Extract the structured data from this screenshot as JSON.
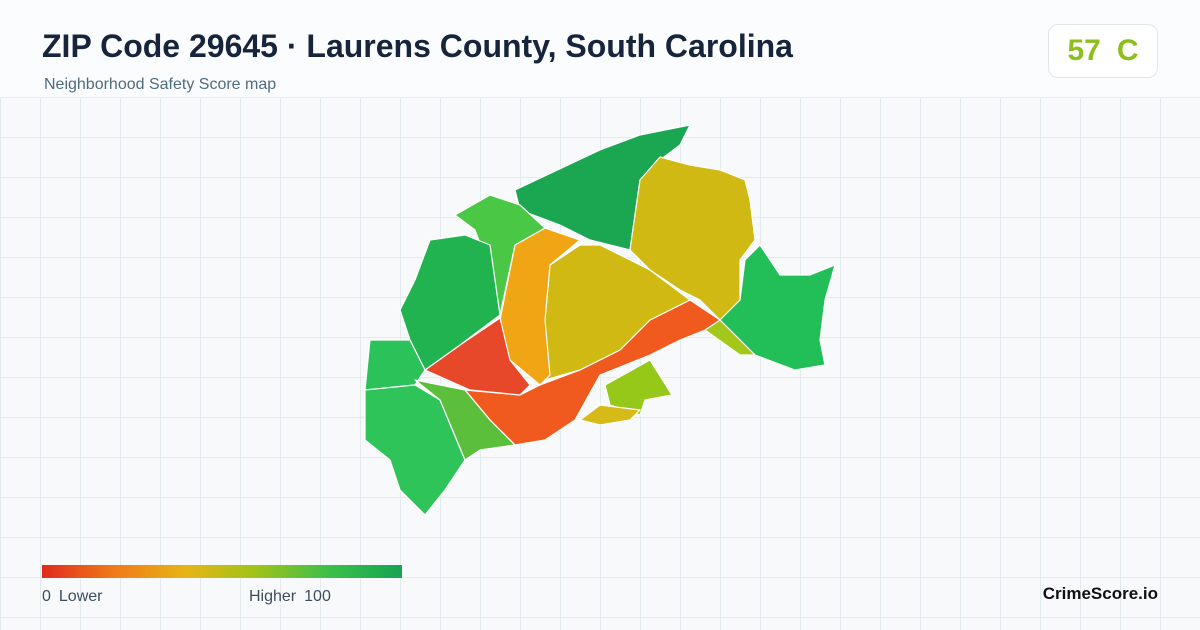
{
  "header": {
    "title": "ZIP Code 29645 · Laurens County, South Carolina",
    "subtitle": "Neighborhood Safety Score map"
  },
  "score": {
    "value": 57,
    "grade": "C"
  },
  "legend": {
    "min": 0,
    "min_label": "Lower",
    "max_label": "Higher",
    "max": 100
  },
  "brand": "CrimeScore.io"
}
